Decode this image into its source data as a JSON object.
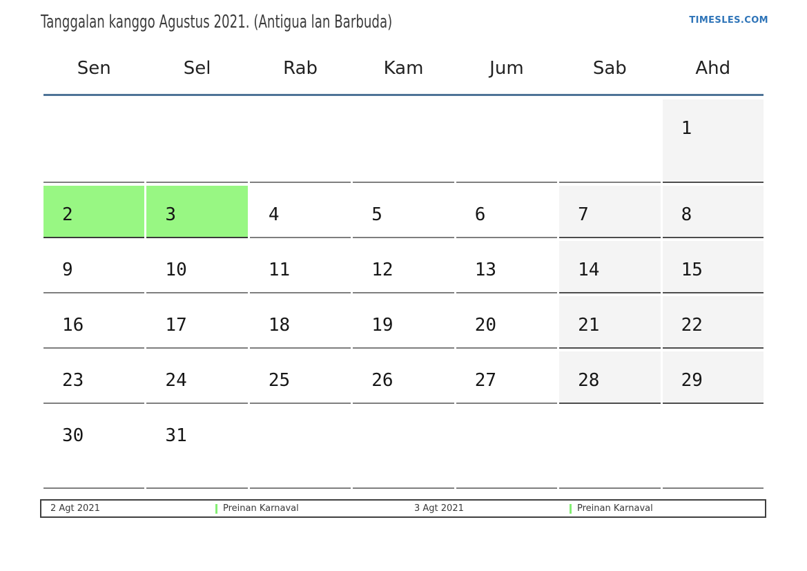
{
  "header": {
    "title": "Tanggalan kanggo Agustus 2021. (Antigua lan Barbuda)",
    "site": "TIMESLES.COM"
  },
  "weekday_headers": [
    "Sen",
    "Sel",
    "Rab",
    "Kam",
    "Jum",
    "Sab",
    "Ahd"
  ],
  "calendar": {
    "month": "Agustus 2021",
    "weeks": [
      [
        {
          "day": "",
          "type": "empty"
        },
        {
          "day": "",
          "type": "empty"
        },
        {
          "day": "",
          "type": "empty"
        },
        {
          "day": "",
          "type": "empty"
        },
        {
          "day": "",
          "type": "empty"
        },
        {
          "day": "",
          "type": "empty"
        },
        {
          "day": "1",
          "type": "weekend"
        }
      ],
      [
        {
          "day": "2",
          "type": "holiday"
        },
        {
          "day": "3",
          "type": "holiday"
        },
        {
          "day": "4",
          "type": "day"
        },
        {
          "day": "5",
          "type": "day"
        },
        {
          "day": "6",
          "type": "day"
        },
        {
          "day": "7",
          "type": "weekend"
        },
        {
          "day": "8",
          "type": "weekend"
        }
      ],
      [
        {
          "day": "9",
          "type": "day"
        },
        {
          "day": "10",
          "type": "day"
        },
        {
          "day": "11",
          "type": "day"
        },
        {
          "day": "12",
          "type": "day"
        },
        {
          "day": "13",
          "type": "day"
        },
        {
          "day": "14",
          "type": "weekend"
        },
        {
          "day": "15",
          "type": "weekend"
        }
      ],
      [
        {
          "day": "16",
          "type": "day"
        },
        {
          "day": "17",
          "type": "day"
        },
        {
          "day": "18",
          "type": "day"
        },
        {
          "day": "19",
          "type": "day"
        },
        {
          "day": "20",
          "type": "day"
        },
        {
          "day": "21",
          "type": "weekend"
        },
        {
          "day": "22",
          "type": "weekend"
        }
      ],
      [
        {
          "day": "23",
          "type": "day"
        },
        {
          "day": "24",
          "type": "day"
        },
        {
          "day": "25",
          "type": "day"
        },
        {
          "day": "26",
          "type": "day"
        },
        {
          "day": "27",
          "type": "day"
        },
        {
          "day": "28",
          "type": "weekend"
        },
        {
          "day": "29",
          "type": "weekend"
        }
      ],
      [
        {
          "day": "30",
          "type": "day"
        },
        {
          "day": "31",
          "type": "day"
        },
        {
          "day": "",
          "type": "empty"
        },
        {
          "day": "",
          "type": "empty"
        },
        {
          "day": "",
          "type": "empty"
        },
        {
          "day": "",
          "type": "empty"
        },
        {
          "day": "",
          "type": "empty"
        }
      ]
    ]
  },
  "legend": {
    "items": [
      {
        "date": "2 Agt 2021",
        "label": "Preinan Karnaval"
      },
      {
        "date": "3 Agt 2021",
        "label": "Preinan Karnaval"
      }
    ]
  },
  "colors": {
    "accent_line": "#4e7397",
    "holiday_green": "#98f783",
    "weekend_gray": "#f4f4f4",
    "legend_marker_green": "#84ef74",
    "logo_blue": "#2e74b8"
  }
}
